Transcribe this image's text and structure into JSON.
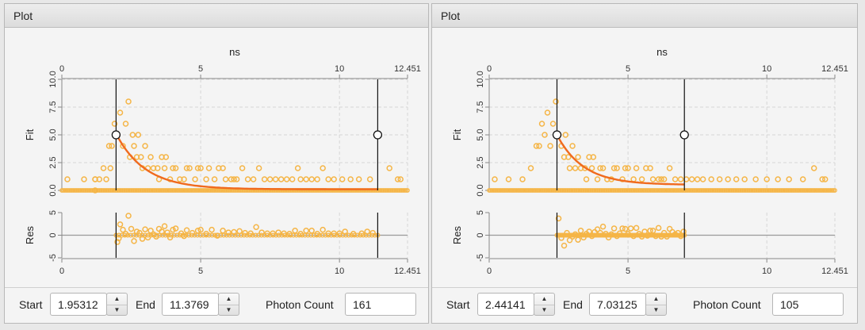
{
  "panels": [
    {
      "title": "Plot",
      "start": "1.95312",
      "end": "11.3769",
      "photon_count_label": "Photon Count",
      "photon_count": "161",
      "start_label": "Start",
      "end_label": "End"
    },
    {
      "title": "Plot",
      "start": "2.44141",
      "end": "7.03125",
      "photon_count_label": "Photon Count",
      "photon_count": "105",
      "start_label": "Start",
      "end_label": "End"
    }
  ],
  "colors": {
    "points": "#f5b546",
    "fit": "#f06a1e",
    "grid": "#d6d6d6",
    "cursor": "#111111"
  },
  "chart_data": [
    {
      "type": "scatter",
      "title": "",
      "xlabel": "ns",
      "x_ticks": [
        "0",
        "5",
        "10",
        "12.451"
      ],
      "xlim": [
        0,
        12.451
      ],
      "fit_panel": {
        "ylabel": "Fit",
        "ylim": [
          0,
          10
        ],
        "y_ticks": [
          "0.0",
          "2.5",
          "5.0",
          "7.5",
          "10.0"
        ]
      },
      "res_panel": {
        "ylabel": "Res",
        "ylim": [
          -5,
          5
        ],
        "y_ticks": [
          "-5",
          "0",
          "5"
        ]
      },
      "cursors": [
        1.95312,
        11.3769
      ],
      "fit_curve": {
        "start": 1.95312,
        "end": 11.3769,
        "amplitude": 5.0,
        "tau": 1.05,
        "offset": 0.1
      },
      "residual_range": [
        1.95312,
        11.3769
      ],
      "peak_position": 2.4,
      "peak_value": 8.0,
      "points_nonzero": [
        [
          0.2,
          1
        ],
        [
          0.8,
          1
        ],
        [
          1.2,
          1
        ],
        [
          1.2,
          0
        ],
        [
          1.2,
          1
        ],
        [
          1.35,
          1
        ],
        [
          1.5,
          2
        ],
        [
          1.6,
          1
        ],
        [
          1.7,
          4
        ],
        [
          1.75,
          2
        ],
        [
          1.8,
          4
        ],
        [
          1.9,
          6
        ],
        [
          2.0,
          5
        ],
        [
          2.1,
          7
        ],
        [
          2.2,
          4
        ],
        [
          2.3,
          6
        ],
        [
          2.4,
          8
        ],
        [
          2.45,
          3
        ],
        [
          2.55,
          5
        ],
        [
          2.6,
          4
        ],
        [
          2.7,
          3
        ],
        [
          2.75,
          5
        ],
        [
          2.85,
          3
        ],
        [
          2.9,
          2
        ],
        [
          3.0,
          4
        ],
        [
          3.1,
          2
        ],
        [
          3.2,
          3
        ],
        [
          3.3,
          2
        ],
        [
          3.45,
          2
        ],
        [
          3.5,
          1
        ],
        [
          3.6,
          3
        ],
        [
          3.7,
          2
        ],
        [
          3.75,
          3
        ],
        [
          3.9,
          1
        ],
        [
          4.0,
          2
        ],
        [
          4.1,
          2
        ],
        [
          4.25,
          1
        ],
        [
          4.4,
          1
        ],
        [
          4.5,
          2
        ],
        [
          4.6,
          2
        ],
        [
          4.8,
          1
        ],
        [
          4.9,
          2
        ],
        [
          5.0,
          2
        ],
        [
          5.2,
          1
        ],
        [
          5.3,
          2
        ],
        [
          5.5,
          1
        ],
        [
          5.65,
          2
        ],
        [
          5.8,
          2
        ],
        [
          5.9,
          1
        ],
        [
          6.1,
          1
        ],
        [
          6.2,
          1
        ],
        [
          6.3,
          1
        ],
        [
          6.5,
          2
        ],
        [
          6.7,
          1
        ],
        [
          6.9,
          1
        ],
        [
          7.1,
          2
        ],
        [
          7.3,
          1
        ],
        [
          7.5,
          1
        ],
        [
          7.7,
          1
        ],
        [
          7.9,
          1
        ],
        [
          8.1,
          1
        ],
        [
          8.3,
          1
        ],
        [
          8.5,
          2
        ],
        [
          8.6,
          1
        ],
        [
          8.8,
          1
        ],
        [
          9.0,
          1
        ],
        [
          9.2,
          1
        ],
        [
          9.4,
          2
        ],
        [
          9.6,
          1
        ],
        [
          9.8,
          1
        ],
        [
          10.1,
          1
        ],
        [
          10.4,
          1
        ],
        [
          10.7,
          1
        ],
        [
          11.1,
          1
        ],
        [
          11.8,
          2
        ],
        [
          12.1,
          1
        ],
        [
          12.2,
          1
        ]
      ],
      "residuals": [
        [
          2.0,
          -1.5
        ],
        [
          2.05,
          -0.7
        ],
        [
          2.1,
          2.4
        ],
        [
          2.2,
          1.2
        ],
        [
          2.3,
          0.3
        ],
        [
          2.4,
          4.3
        ],
        [
          2.5,
          1.4
        ],
        [
          2.6,
          -1.3
        ],
        [
          2.7,
          0.8
        ],
        [
          2.8,
          0.5
        ],
        [
          2.9,
          -0.8
        ],
        [
          3.0,
          1.3
        ],
        [
          3.1,
          -0.5
        ],
        [
          3.2,
          1.0
        ],
        [
          3.3,
          0.2
        ],
        [
          3.4,
          -0.3
        ],
        [
          3.5,
          1.4
        ],
        [
          3.6,
          0.8
        ],
        [
          3.7,
          2.0
        ],
        [
          3.8,
          0.6
        ],
        [
          3.9,
          -0.5
        ],
        [
          4.0,
          1.2
        ],
        [
          4.1,
          1.5
        ],
        [
          4.3,
          0.4
        ],
        [
          4.4,
          -0.2
        ],
        [
          4.5,
          1.1
        ],
        [
          4.7,
          0.5
        ],
        [
          4.9,
          1.0
        ],
        [
          5.0,
          1.2
        ],
        [
          5.2,
          0.3
        ],
        [
          5.4,
          1.2
        ],
        [
          5.6,
          -0.1
        ],
        [
          5.8,
          1.0
        ],
        [
          6.0,
          0.6
        ],
        [
          6.2,
          0.7
        ],
        [
          6.4,
          0.9
        ],
        [
          6.6,
          0.5
        ],
        [
          6.8,
          0.4
        ],
        [
          7.0,
          1.8
        ],
        [
          7.2,
          0.6
        ],
        [
          7.4,
          0.4
        ],
        [
          7.6,
          0.4
        ],
        [
          7.8,
          0.6
        ],
        [
          8.0,
          0.4
        ],
        [
          8.2,
          0.3
        ],
        [
          8.4,
          1.0
        ],
        [
          8.6,
          0.3
        ],
        [
          8.8,
          1.0
        ],
        [
          9.0,
          1.0
        ],
        [
          9.2,
          0.3
        ],
        [
          9.4,
          1.2
        ],
        [
          9.6,
          0.4
        ],
        [
          9.8,
          0.4
        ],
        [
          10.0,
          0.4
        ],
        [
          10.2,
          0.8
        ],
        [
          10.5,
          0.3
        ],
        [
          10.8,
          0.4
        ],
        [
          11.0,
          0.8
        ],
        [
          11.2,
          0.5
        ]
      ]
    },
    {
      "type": "scatter",
      "title": "",
      "xlabel": "ns",
      "x_ticks": [
        "0",
        "5",
        "10",
        "12.451"
      ],
      "xlim": [
        0,
        12.451
      ],
      "fit_panel": {
        "ylabel": "Fit",
        "ylim": [
          0,
          10
        ],
        "y_ticks": [
          "0.0",
          "2.5",
          "5.0",
          "7.5",
          "10.0"
        ]
      },
      "res_panel": {
        "ylabel": "Res",
        "ylim": [
          -5,
          5
        ],
        "y_ticks": [
          "-5",
          "0",
          "5"
        ]
      },
      "cursors": [
        2.44141,
        7.03125
      ],
      "fit_curve": {
        "start": 2.44141,
        "end": 7.03125,
        "amplitude": 4.5,
        "tau": 0.95,
        "offset": 0.5
      },
      "residual_range": [
        2.44141,
        7.03125
      ],
      "peak_position": 2.4,
      "peak_value": 8.0,
      "points_nonzero": [
        [
          0.2,
          1
        ],
        [
          0.7,
          1
        ],
        [
          1.2,
          1
        ],
        [
          1.5,
          2
        ],
        [
          1.7,
          4
        ],
        [
          1.8,
          4
        ],
        [
          1.9,
          6
        ],
        [
          2.0,
          5
        ],
        [
          2.1,
          7
        ],
        [
          2.2,
          4
        ],
        [
          2.3,
          6
        ],
        [
          2.4,
          8
        ],
        [
          2.5,
          5
        ],
        [
          2.6,
          4
        ],
        [
          2.7,
          3
        ],
        [
          2.75,
          5
        ],
        [
          2.85,
          3
        ],
        [
          2.9,
          2
        ],
        [
          3.0,
          4
        ],
        [
          3.1,
          2
        ],
        [
          3.2,
          3
        ],
        [
          3.3,
          2
        ],
        [
          3.45,
          2
        ],
        [
          3.5,
          1
        ],
        [
          3.6,
          3
        ],
        [
          3.7,
          2
        ],
        [
          3.75,
          3
        ],
        [
          3.9,
          1
        ],
        [
          4.0,
          2
        ],
        [
          4.1,
          2
        ],
        [
          4.25,
          1
        ],
        [
          4.4,
          1
        ],
        [
          4.5,
          2
        ],
        [
          4.6,
          2
        ],
        [
          4.8,
          1
        ],
        [
          4.9,
          2
        ],
        [
          5.0,
          2
        ],
        [
          5.2,
          1
        ],
        [
          5.3,
          2
        ],
        [
          5.5,
          1
        ],
        [
          5.65,
          2
        ],
        [
          5.8,
          2
        ],
        [
          5.9,
          1
        ],
        [
          6.1,
          1
        ],
        [
          6.2,
          1
        ],
        [
          6.3,
          1
        ],
        [
          6.5,
          2
        ],
        [
          6.7,
          1
        ],
        [
          6.9,
          1
        ],
        [
          7.1,
          1
        ],
        [
          7.3,
          1
        ],
        [
          7.5,
          1
        ],
        [
          7.7,
          1
        ],
        [
          8.0,
          1
        ],
        [
          8.3,
          1
        ],
        [
          8.6,
          1
        ],
        [
          8.9,
          1
        ],
        [
          9.2,
          1
        ],
        [
          9.6,
          1
        ],
        [
          10.0,
          1
        ],
        [
          10.4,
          1
        ],
        [
          10.8,
          1
        ],
        [
          11.3,
          1
        ],
        [
          11.7,
          2
        ],
        [
          12.0,
          1
        ],
        [
          12.1,
          1
        ]
      ],
      "residuals": [
        [
          2.5,
          3.7
        ],
        [
          2.6,
          -0.6
        ],
        [
          2.7,
          -2.3
        ],
        [
          2.8,
          0.5
        ],
        [
          2.9,
          -1.1
        ],
        [
          3.0,
          -0.3
        ],
        [
          3.1,
          0.2
        ],
        [
          3.2,
          -1.0
        ],
        [
          3.3,
          1.0
        ],
        [
          3.4,
          -0.5
        ],
        [
          3.5,
          0.3
        ],
        [
          3.6,
          0.8
        ],
        [
          3.7,
          -0.2
        ],
        [
          3.8,
          0.7
        ],
        [
          3.9,
          1.3
        ],
        [
          4.0,
          0.5
        ],
        [
          4.1,
          1.9
        ],
        [
          4.2,
          0.3
        ],
        [
          4.3,
          -0.5
        ],
        [
          4.4,
          0.2
        ],
        [
          4.5,
          1.5
        ],
        [
          4.6,
          -0.2
        ],
        [
          4.7,
          0.4
        ],
        [
          4.8,
          1.5
        ],
        [
          4.9,
          1.4
        ],
        [
          5.0,
          0.3
        ],
        [
          5.1,
          1.5
        ],
        [
          5.2,
          -0.2
        ],
        [
          5.3,
          1.6
        ],
        [
          5.4,
          0.3
        ],
        [
          5.5,
          -0.3
        ],
        [
          5.6,
          0.8
        ],
        [
          5.7,
          -0.1
        ],
        [
          5.8,
          1.0
        ],
        [
          5.9,
          1.0
        ],
        [
          6.0,
          -0.2
        ],
        [
          6.1,
          1.6
        ],
        [
          6.2,
          -0.3
        ],
        [
          6.3,
          0.5
        ],
        [
          6.4,
          -0.3
        ],
        [
          6.5,
          1.4
        ],
        [
          6.6,
          0.7
        ],
        [
          6.7,
          0.2
        ],
        [
          6.8,
          0.5
        ],
        [
          6.9,
          -0.2
        ],
        [
          7.0,
          0.8
        ]
      ]
    }
  ]
}
